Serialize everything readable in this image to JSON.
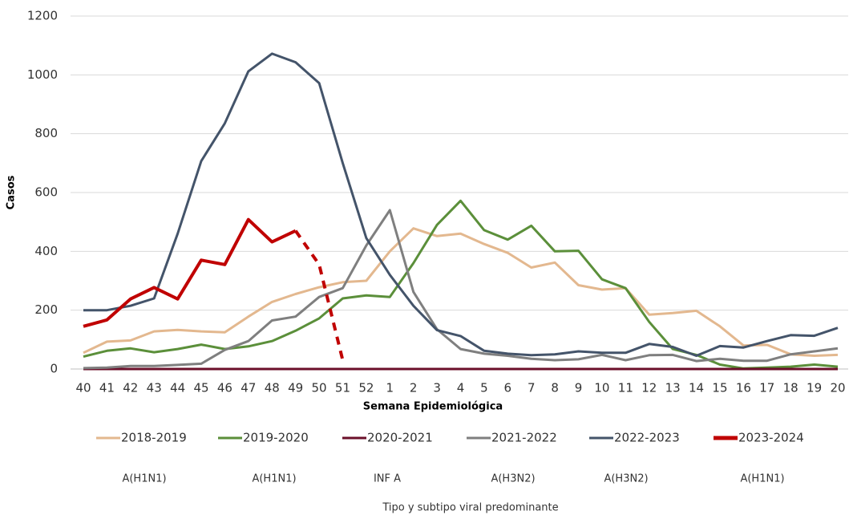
{
  "chart_data": {
    "type": "line",
    "y_label": "Casos",
    "x_label": "Semana Epidemiológica",
    "categories": [
      "40",
      "41",
      "42",
      "43",
      "44",
      "45",
      "46",
      "47",
      "48",
      "49",
      "50",
      "51",
      "52",
      "1",
      "2",
      "3",
      "4",
      "5",
      "6",
      "7",
      "8",
      "9",
      "10",
      "11",
      "12",
      "13",
      "14",
      "15",
      "16",
      "17",
      "18",
      "19",
      "20"
    ],
    "ylim": [
      0,
      1200
    ],
    "yticks": [
      0,
      200,
      400,
      600,
      800,
      1000,
      1200
    ],
    "grid": true,
    "legend": "bottom",
    "series": [
      {
        "name": "2018-2019",
        "color": "#e3b88f",
        "values": [
          55,
          93,
          97,
          128,
          133,
          128,
          125,
          178,
          228,
          255,
          278,
          295,
          300,
          400,
          478,
          452,
          460,
          425,
          395,
          345,
          362,
          285,
          270,
          275,
          185,
          190,
          198,
          145,
          80,
          82,
          50,
          45,
          48
        ]
      },
      {
        "name": "2019-2020",
        "color": "#5b8f3a",
        "values": [
          42,
          62,
          70,
          57,
          68,
          83,
          68,
          77,
          95,
          130,
          172,
          240,
          250,
          245,
          360,
          490,
          572,
          472,
          440,
          487,
          400,
          402,
          305,
          275,
          160,
          68,
          48,
          15,
          2,
          5,
          8,
          15,
          8
        ]
      },
      {
        "name": "2020-2021",
        "color": "#6b0f2a",
        "values": [
          0,
          0,
          0,
          0,
          0,
          0,
          0,
          0,
          0,
          0,
          0,
          0,
          0,
          0,
          0,
          0,
          0,
          0,
          0,
          0,
          0,
          0,
          0,
          0,
          0,
          0,
          0,
          0,
          0,
          0,
          0,
          0,
          0
        ]
      },
      {
        "name": "2021-2022",
        "color": "#7f7f7f",
        "values": [
          3,
          5,
          10,
          10,
          14,
          18,
          65,
          95,
          165,
          178,
          245,
          275,
          420,
          540,
          262,
          135,
          68,
          52,
          45,
          35,
          30,
          33,
          48,
          30,
          47,
          48,
          27,
          35,
          28,
          28,
          50,
          60,
          70
        ]
      },
      {
        "name": "2022-2023",
        "color": "#44546a",
        "values": [
          200,
          200,
          215,
          240,
          460,
          707,
          835,
          1012,
          1072,
          1043,
          972,
          700,
          445,
          320,
          215,
          132,
          112,
          62,
          52,
          47,
          50,
          60,
          55,
          55,
          85,
          75,
          45,
          78,
          73,
          95,
          115,
          113,
          140
        ]
      },
      {
        "name": "2023-2024",
        "color": "#c00000",
        "dashed_from": "49",
        "values": [
          145,
          167,
          238,
          277,
          238,
          370,
          355,
          508,
          432,
          470,
          355,
          30,
          null,
          null,
          null,
          null,
          null,
          null,
          null,
          null,
          null,
          null,
          null,
          null,
          null,
          null,
          null,
          null,
          null,
          null,
          null,
          null,
          null
        ]
      }
    ],
    "annotations": [
      "A(H1N1)",
      "A(H1N1)",
      "INF A",
      "A(H3N2)",
      "A(H3N2)",
      "A(H1N1)"
    ],
    "caption": "Tipo y subtipo viral predominante"
  }
}
